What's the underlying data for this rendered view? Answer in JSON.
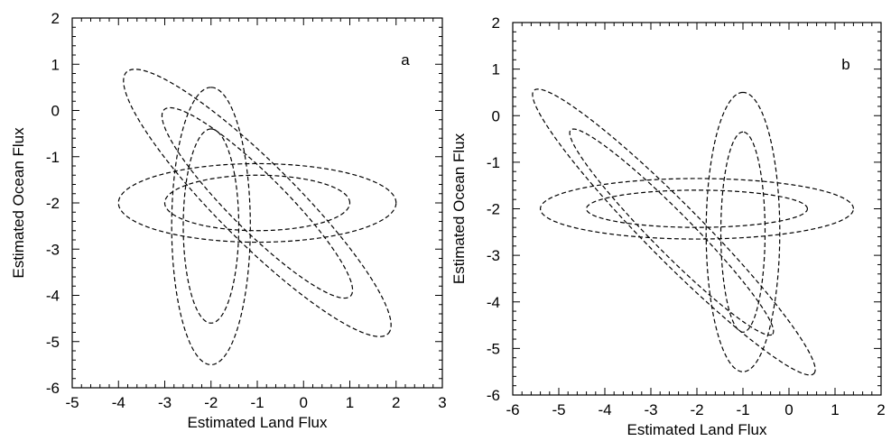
{
  "chart_data": [
    {
      "type": "line",
      "panel_label": "a",
      "xlabel": "Estimated Land Flux",
      "ylabel": "Estimated Ocean Flux",
      "xlim": [
        -5,
        3
      ],
      "ylim": [
        -6,
        2
      ],
      "xticks": [
        -5,
        -4,
        -3,
        -2,
        -1,
        0,
        1,
        2,
        3
      ],
      "yticks": [
        -6,
        -5,
        -4,
        -3,
        -2,
        -1,
        0,
        1,
        2
      ],
      "grid": false,
      "line_style": "dashed",
      "color": "#000000",
      "series": [
        {
          "center": [
            -1,
            -2
          ],
          "semi_major": 3.0,
          "semi_minor": 0.85,
          "angle_deg": 0
        },
        {
          "center": [
            -1,
            -2
          ],
          "semi_major": 2.0,
          "semi_minor": 0.6,
          "angle_deg": 0
        },
        {
          "center": [
            -2,
            -2.5
          ],
          "semi_major": 3.0,
          "semi_minor": 0.85,
          "angle_deg": 90
        },
        {
          "center": [
            -2,
            -2.5
          ],
          "semi_major": 2.1,
          "semi_minor": 0.6,
          "angle_deg": 90
        },
        {
          "center": [
            -1,
            -2
          ],
          "semi_major": 4.0,
          "semi_minor": 0.85,
          "angle_deg": -45
        },
        {
          "center": [
            -1,
            -2
          ],
          "semi_major": 2.85,
          "semi_minor": 0.6,
          "angle_deg": -45
        }
      ]
    },
    {
      "type": "line",
      "panel_label": "b",
      "xlabel": "Estimated Land Flux",
      "ylabel": "Estimated Ocean Flux",
      "xlim": [
        -6,
        2
      ],
      "ylim": [
        -6,
        2
      ],
      "xticks": [
        -6,
        -5,
        -4,
        -3,
        -2,
        -1,
        0,
        1,
        2
      ],
      "yticks": [
        -6,
        -5,
        -4,
        -3,
        -2,
        -1,
        0,
        1,
        2
      ],
      "grid": false,
      "line_style": "dashed",
      "color": "#000000",
      "series": [
        {
          "center": [
            -2,
            -2
          ],
          "semi_major": 3.4,
          "semi_minor": 0.65,
          "angle_deg": 0
        },
        {
          "center": [
            -2,
            -2
          ],
          "semi_major": 2.4,
          "semi_minor": 0.4,
          "angle_deg": 0
        },
        {
          "center": [
            -1,
            -2.5
          ],
          "semi_major": 3.0,
          "semi_minor": 0.8,
          "angle_deg": 90
        },
        {
          "center": [
            -1,
            -2.5
          ],
          "semi_major": 2.15,
          "semi_minor": 0.48,
          "angle_deg": 90
        },
        {
          "center": [
            -2.5,
            -2.5
          ],
          "semi_major": 4.3,
          "semi_minor": 0.6,
          "angle_deg": -45
        },
        {
          "center": [
            -2.55,
            -2.5
          ],
          "semi_major": 3.1,
          "semi_minor": 0.43,
          "angle_deg": -45
        }
      ]
    }
  ]
}
